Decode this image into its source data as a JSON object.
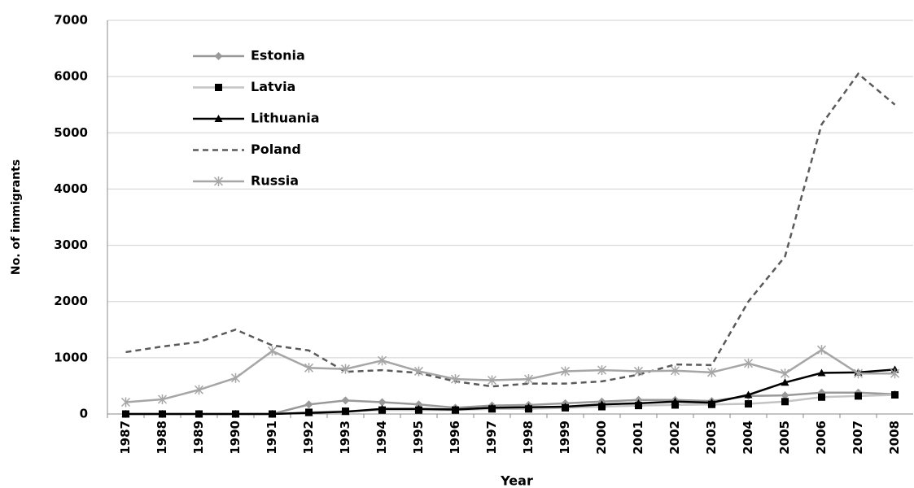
{
  "chart_data": {
    "type": "line",
    "y_label": "No. of immigrants",
    "x_label": "Year",
    "categories": [
      "1987",
      "1988",
      "1989",
      "1990",
      "1991",
      "1992",
      "1993",
      "1994",
      "1995",
      "1996",
      "1997",
      "1998",
      "1999",
      "2000",
      "2001",
      "2002",
      "2003",
      "2004",
      "2005",
      "2006",
      "2007",
      "2008"
    ],
    "series": [
      {
        "name": "Estonia",
        "color": "#999999",
        "marker": "diamond",
        "marker_color": "#999999",
        "dash": false,
        "values": [
          0,
          0,
          0,
          0,
          0,
          170,
          240,
          210,
          170,
          110,
          150,
          160,
          190,
          220,
          250,
          250,
          230,
          320,
          330,
          380,
          380,
          350
        ]
      },
      {
        "name": "Latvia",
        "color": "#c4c4c4",
        "marker": "square",
        "marker_color": "#000000",
        "dash": false,
        "values": [
          0,
          0,
          0,
          0,
          0,
          30,
          50,
          70,
          70,
          70,
          90,
          90,
          110,
          130,
          150,
          160,
          170,
          180,
          220,
          300,
          320,
          340
        ]
      },
      {
        "name": "Lithuania",
        "color": "#000000",
        "marker": "triangle",
        "marker_color": "#000000",
        "dash": false,
        "values": [
          0,
          0,
          0,
          0,
          0,
          20,
          40,
          90,
          90,
          80,
          110,
          120,
          130,
          170,
          190,
          220,
          200,
          340,
          560,
          730,
          740,
          790
        ]
      },
      {
        "name": "Poland",
        "color": "#5a5a5a",
        "marker": "none",
        "marker_color": "#5a5a5a",
        "dash": true,
        "values": [
          1100,
          1200,
          1280,
          1500,
          1220,
          1130,
          750,
          780,
          730,
          580,
          490,
          540,
          540,
          580,
          700,
          880,
          870,
          2000,
          2800,
          5150,
          6050,
          5500
        ]
      },
      {
        "name": "Russia",
        "color": "#a6a6a6",
        "marker": "star",
        "marker_color": "#a6a6a6",
        "dash": false,
        "values": [
          210,
          260,
          430,
          640,
          1120,
          820,
          800,
          950,
          760,
          620,
          600,
          620,
          760,
          780,
          760,
          770,
          740,
          900,
          720,
          1140,
          720,
          720
        ]
      }
    ],
    "ylim": [
      0,
      7000
    ],
    "yticks": [
      0,
      1000,
      2000,
      3000,
      4000,
      5000,
      6000,
      7000
    ],
    "grid": true,
    "legend": "upper left"
  }
}
